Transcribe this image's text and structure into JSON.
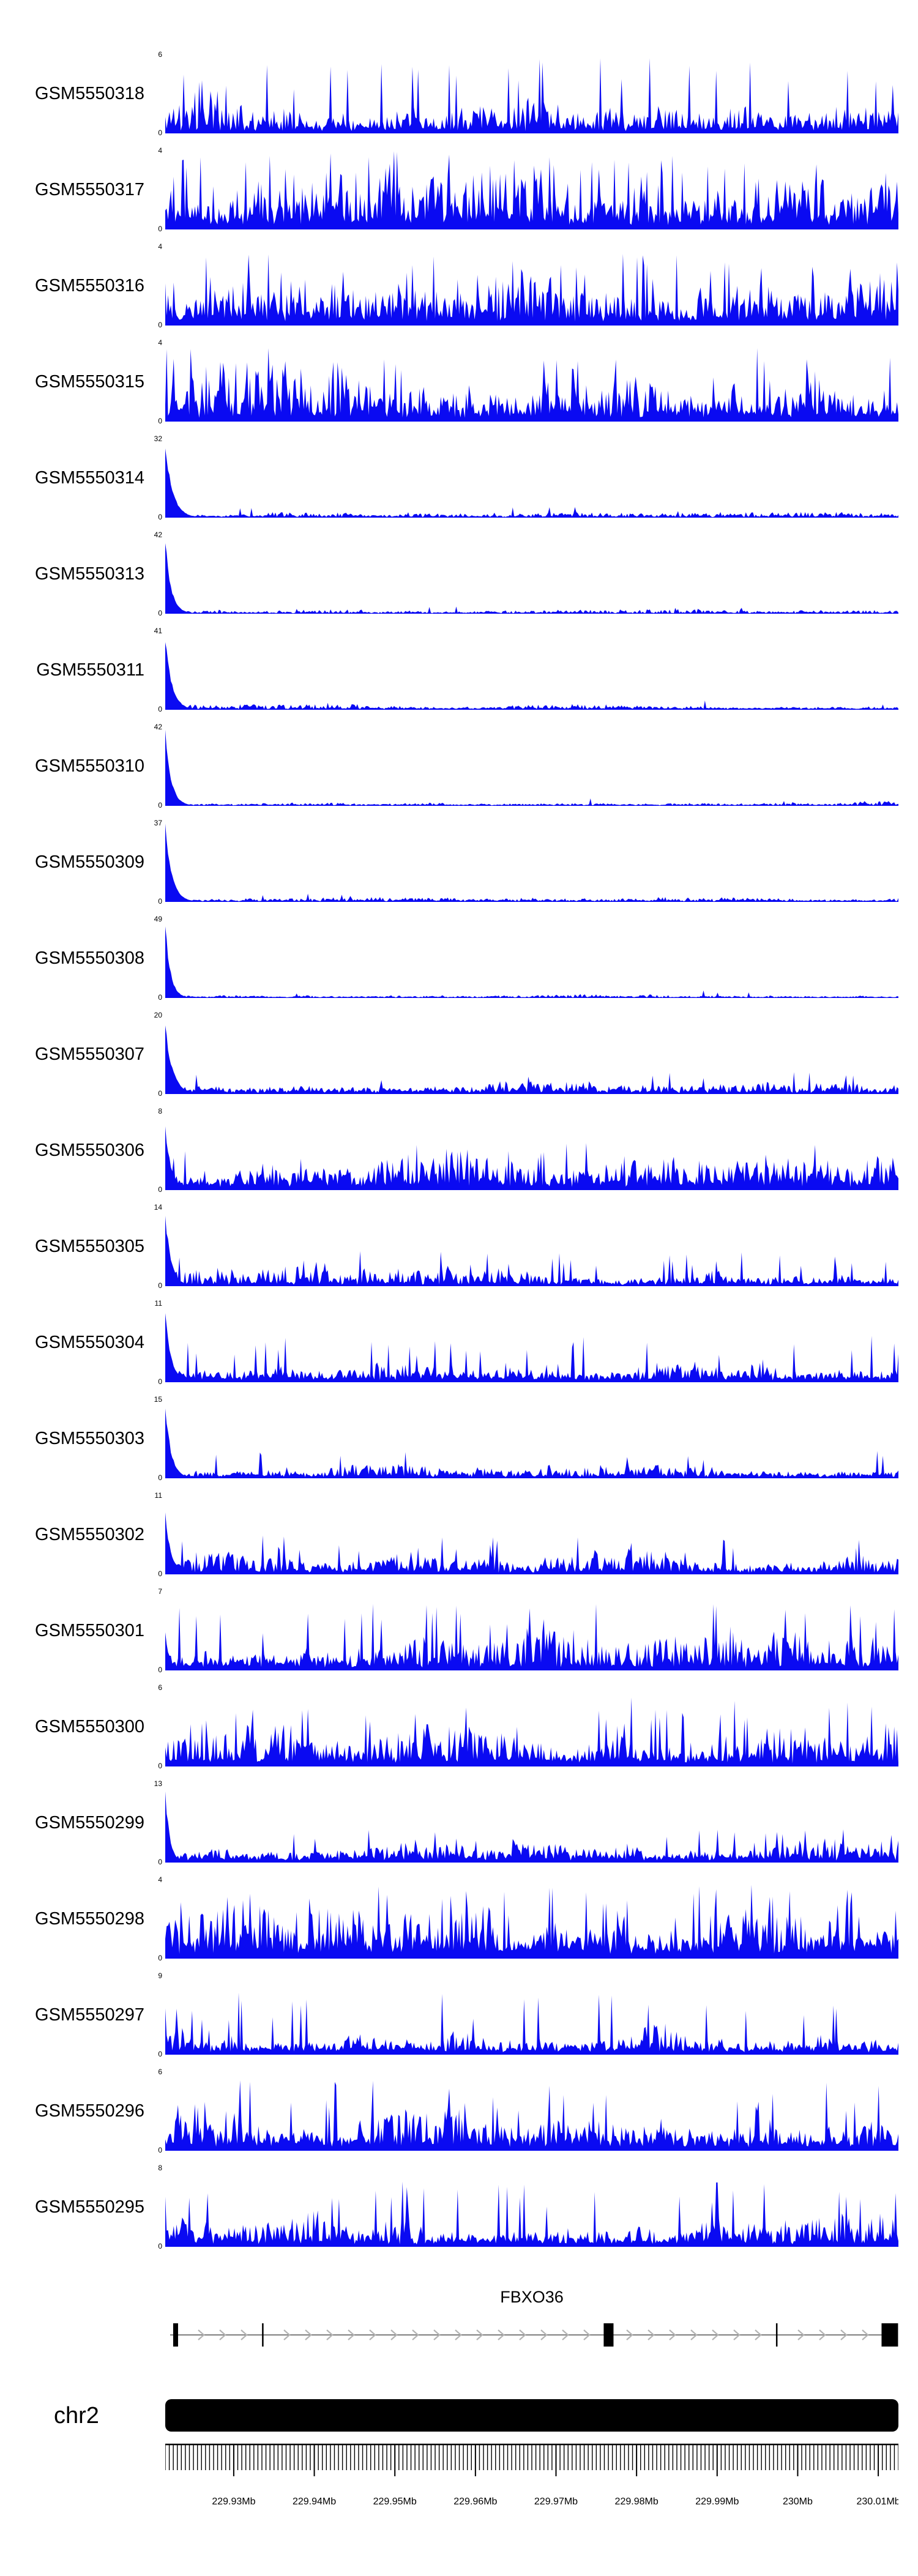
{
  "figure": {
    "background": "#ffffff"
  },
  "chart_data": {
    "type": "area",
    "layout": "genome-browser-coverage-tracks",
    "note": "Gviz-style genome browser figure; per-track coverage profiles are dense noisy histograms estimated from the screenshot and synthesized deterministically from the profile parameters below.",
    "coverage_color": "#0a0af2",
    "region": {
      "chromosome_label": "chr2",
      "start_mb": 229.9215,
      "end_mb": 230.0125,
      "minor_tick_step_mb": 0.0005
    },
    "tracks": [
      {
        "label": "GSM5550318",
        "ymin": 0,
        "ymax": 6,
        "profile": {
          "seed": 11,
          "peak": 0,
          "peakW": 0.01,
          "base": 0.08,
          "noise": 0.62,
          "spikeP": 0.05,
          "spikeH": 1.0
        }
      },
      {
        "label": "GSM5550317",
        "ymin": 0,
        "ymax": 4,
        "profile": {
          "seed": 12,
          "peak": 0,
          "peakW": 0.01,
          "base": 0.15,
          "noise": 0.85,
          "spikeP": 0.08,
          "spikeH": 1.0
        }
      },
      {
        "label": "GSM5550316",
        "ymin": 0,
        "ymax": 4,
        "profile": {
          "seed": 13,
          "peak": 0,
          "peakW": 0.01,
          "base": 0.14,
          "noise": 0.8,
          "spikeP": 0.07,
          "spikeH": 0.95
        }
      },
      {
        "label": "GSM5550315",
        "ymin": 0,
        "ymax": 4,
        "profile": {
          "seed": 14,
          "peak": 0,
          "peakW": 0.01,
          "base": 0.12,
          "noise": 0.75,
          "spikeP": 0.06,
          "spikeH": 0.95
        }
      },
      {
        "label": "GSM5550314",
        "ymin": 0,
        "ymax": 32,
        "profile": {
          "seed": 15,
          "peak": 1,
          "peakW": 0.01,
          "base": 0.02,
          "noise": 0.06,
          "spikeP": 0.012,
          "spikeH": 0.14
        }
      },
      {
        "label": "GSM5550313",
        "ymin": 0,
        "ymax": 42,
        "profile": {
          "seed": 16,
          "peak": 1,
          "peakW": 0.008,
          "base": 0.015,
          "noise": 0.05,
          "spikeP": 0.008,
          "spikeH": 0.1
        }
      },
      {
        "label": "GSM5550311",
        "ymin": 0,
        "ymax": 41,
        "profile": {
          "seed": 17,
          "peak": 1,
          "peakW": 0.009,
          "base": 0.02,
          "noise": 0.06,
          "spikeP": 0.01,
          "spikeH": 0.12
        }
      },
      {
        "label": "GSM5550310",
        "ymin": 0,
        "ymax": 42,
        "profile": {
          "seed": 18,
          "peak": 1,
          "peakW": 0.008,
          "base": 0.015,
          "noise": 0.05,
          "spikeP": 0.008,
          "spikeH": 0.1
        }
      },
      {
        "label": "GSM5550309",
        "ymin": 0,
        "ymax": 37,
        "profile": {
          "seed": 19,
          "peak": 1,
          "peakW": 0.009,
          "base": 0.02,
          "noise": 0.05,
          "spikeP": 0.01,
          "spikeH": 0.12
        }
      },
      {
        "label": "GSM5550308",
        "ymin": 0,
        "ymax": 49,
        "profile": {
          "seed": 20,
          "peak": 1,
          "peakW": 0.007,
          "base": 0.015,
          "noise": 0.04,
          "spikeP": 0.008,
          "spikeH": 0.1
        }
      },
      {
        "label": "GSM5550307",
        "ymin": 0,
        "ymax": 20,
        "profile": {
          "seed": 21,
          "peak": 0.95,
          "peakW": 0.01,
          "base": 0.04,
          "noise": 0.14,
          "spikeP": 0.03,
          "spikeH": 0.28
        }
      },
      {
        "label": "GSM5550306",
        "ymin": 0,
        "ymax": 8,
        "profile": {
          "seed": 22,
          "peak": 0.9,
          "peakW": 0.008,
          "base": 0.1,
          "noise": 0.38,
          "spikeP": 0.05,
          "spikeH": 0.6
        }
      },
      {
        "label": "GSM5550305",
        "ymin": 0,
        "ymax": 14,
        "profile": {
          "seed": 23,
          "peak": 1,
          "peakW": 0.008,
          "base": 0.05,
          "noise": 0.24,
          "spikeP": 0.04,
          "spikeH": 0.45
        }
      },
      {
        "label": "GSM5550304",
        "ymin": 0,
        "ymax": 11,
        "profile": {
          "seed": 24,
          "peak": 0.95,
          "peakW": 0.008,
          "base": 0.07,
          "noise": 0.3,
          "spikeP": 0.04,
          "spikeH": 0.6
        }
      },
      {
        "label": "GSM5550303",
        "ymin": 0,
        "ymax": 15,
        "profile": {
          "seed": 25,
          "peak": 1,
          "peakW": 0.008,
          "base": 0.04,
          "noise": 0.17,
          "spikeP": 0.03,
          "spikeH": 0.35
        }
      },
      {
        "label": "GSM5550302",
        "ymin": 0,
        "ymax": 11,
        "profile": {
          "seed": 26,
          "peak": 0.85,
          "peakW": 0.008,
          "base": 0.06,
          "noise": 0.27,
          "spikeP": 0.04,
          "spikeH": 0.5
        }
      },
      {
        "label": "GSM5550301",
        "ymin": 0,
        "ymax": 7,
        "profile": {
          "seed": 27,
          "peak": 0.5,
          "peakW": 0.006,
          "base": 0.1,
          "noise": 0.45,
          "spikeP": 0.06,
          "spikeH": 0.85
        }
      },
      {
        "label": "GSM5550300",
        "ymin": 0,
        "ymax": 6,
        "profile": {
          "seed": 28,
          "peak": 0,
          "peakW": 0.01,
          "base": 0.1,
          "noise": 0.5,
          "spikeP": 0.07,
          "spikeH": 0.9
        }
      },
      {
        "label": "GSM5550299",
        "ymin": 0,
        "ymax": 13,
        "profile": {
          "seed": 29,
          "peak": 1,
          "peakW": 0.006,
          "base": 0.07,
          "noise": 0.25,
          "spikeP": 0.04,
          "spikeH": 0.45
        }
      },
      {
        "label": "GSM5550298",
        "ymin": 0,
        "ymax": 4,
        "profile": {
          "seed": 30,
          "peak": 0,
          "peakW": 0.01,
          "base": 0.15,
          "noise": 0.72,
          "spikeP": 0.08,
          "spikeH": 0.95
        }
      },
      {
        "label": "GSM5550297",
        "ymin": 0,
        "ymax": 9,
        "profile": {
          "seed": 31,
          "peak": 0.4,
          "peakW": 0.005,
          "base": 0.08,
          "noise": 0.38,
          "spikeP": 0.05,
          "spikeH": 0.8
        }
      },
      {
        "label": "GSM5550296",
        "ymin": 0,
        "ymax": 6,
        "profile": {
          "seed": 32,
          "peak": 0,
          "peakW": 0.01,
          "base": 0.13,
          "noise": 0.58,
          "spikeP": 0.06,
          "spikeH": 0.9
        }
      },
      {
        "label": "GSM5550295",
        "ymin": 0,
        "ymax": 8,
        "profile": {
          "seed": 33,
          "peak": 0.3,
          "peakW": 0.005,
          "base": 0.09,
          "noise": 0.4,
          "spikeP": 0.05,
          "spikeH": 0.85
        }
      }
    ],
    "gene_track": {
      "name": "FBXO36",
      "strand": "+",
      "line_color": "#808080",
      "arrow_color": "#b3b3b3",
      "exon_color": "#000000",
      "exons": [
        {
          "x": 0.0108,
          "w": 0.0067
        },
        {
          "x": 0.132,
          "w": 0.002
        },
        {
          "x": 0.598,
          "w": 0.0134
        },
        {
          "x": 0.833,
          "w": 0.002
        },
        {
          "x": 0.977,
          "w": 0.0225
        }
      ]
    },
    "ideogram": {
      "label": "chr2",
      "color": "#000000"
    },
    "axis": {
      "ticks": [
        {
          "mb": 229.93,
          "label": "229.93Mb"
        },
        {
          "mb": 229.94,
          "label": "229.94Mb"
        },
        {
          "mb": 229.95,
          "label": "229.95Mb"
        },
        {
          "mb": 229.96,
          "label": "229.96Mb"
        },
        {
          "mb": 229.97,
          "label": "229.97Mb"
        },
        {
          "mb": 229.98,
          "label": "229.98Mb"
        },
        {
          "mb": 229.99,
          "label": "229.99Mb"
        },
        {
          "mb": 230.0,
          "label": "230Mb"
        },
        {
          "mb": 230.01,
          "label": "230.01Mb"
        }
      ]
    }
  }
}
